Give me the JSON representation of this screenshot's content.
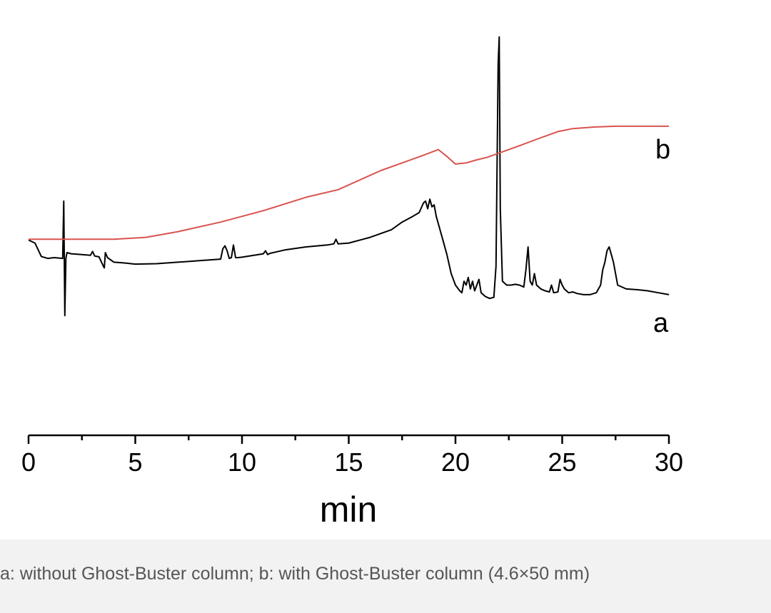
{
  "chart_data": {
    "type": "line",
    "title": "",
    "xlabel": "min",
    "ylabel": "",
    "xlim": [
      0,
      30
    ],
    "ylim": [
      0,
      1
    ],
    "x_ticks": [
      0,
      5,
      10,
      15,
      20,
      25,
      30
    ],
    "x_tick_labels": [
      "0",
      "5",
      "10",
      "15",
      "20",
      "25",
      "30"
    ],
    "grid": false,
    "legend": "inline labels at right end of each trace",
    "series": [
      {
        "name": "a",
        "color": "#000000",
        "x": [
          0,
          0.3,
          0.6,
          0.9,
          1.2,
          1.6,
          1.65,
          1.7,
          1.75,
          1.8,
          2.0,
          2.5,
          2.9,
          3.0,
          3.1,
          3.3,
          3.5,
          3.55,
          3.6,
          3.7,
          4.0,
          4.5,
          5.0,
          6.0,
          7.0,
          8.0,
          9.0,
          9.1,
          9.2,
          9.3,
          9.4,
          9.5,
          9.6,
          9.7,
          9.8,
          10.0,
          11.0,
          11.1,
          11.2,
          11.3,
          12.0,
          13.0,
          14.0,
          14.3,
          14.4,
          14.5,
          15.0,
          16.0,
          17.0,
          17.5,
          18.0,
          18.3,
          18.5,
          18.6,
          18.7,
          18.8,
          18.9,
          19.0,
          19.1,
          19.2,
          19.4,
          19.6,
          19.8,
          20.0,
          20.2,
          20.3,
          20.4,
          20.5,
          20.6,
          20.7,
          20.8,
          20.9,
          21.0,
          21.1,
          21.2,
          21.4,
          21.6,
          21.8,
          21.9,
          22.0,
          22.05,
          22.1,
          22.2,
          22.4,
          22.6,
          22.8,
          23.0,
          23.2,
          23.3,
          23.4,
          23.5,
          23.6,
          23.7,
          23.8,
          24.0,
          24.2,
          24.4,
          24.5,
          24.6,
          24.8,
          24.9,
          25.0,
          25.1,
          25.3,
          25.5,
          25.7,
          26.0,
          26.3,
          26.6,
          26.8,
          26.9,
          27.0,
          27.1,
          27.2,
          27.3,
          27.4,
          27.6,
          28.0,
          28.5,
          29.0,
          29.5,
          30.0
        ],
        "y": [
          0.418,
          0.41,
          0.375,
          0.37,
          0.372,
          0.37,
          0.52,
          0.22,
          0.37,
          0.385,
          0.382,
          0.38,
          0.378,
          0.388,
          0.376,
          0.374,
          0.35,
          0.345,
          0.385,
          0.372,
          0.36,
          0.358,
          0.355,
          0.356,
          0.36,
          0.364,
          0.368,
          0.395,
          0.403,
          0.39,
          0.37,
          0.372,
          0.405,
          0.372,
          0.372,
          0.373,
          0.382,
          0.39,
          0.38,
          0.383,
          0.392,
          0.4,
          0.405,
          0.408,
          0.42,
          0.408,
          0.41,
          0.425,
          0.445,
          0.465,
          0.48,
          0.49,
          0.515,
          0.52,
          0.5,
          0.525,
          0.505,
          0.51,
          0.48,
          0.46,
          0.42,
          0.38,
          0.33,
          0.3,
          0.285,
          0.28,
          0.31,
          0.3,
          0.32,
          0.29,
          0.31,
          0.285,
          0.3,
          0.315,
          0.28,
          0.27,
          0.265,
          0.268,
          0.35,
          0.88,
          0.95,
          0.5,
          0.31,
          0.3,
          0.3,
          0.302,
          0.3,
          0.295,
          0.34,
          0.4,
          0.31,
          0.3,
          0.33,
          0.3,
          0.29,
          0.285,
          0.282,
          0.3,
          0.28,
          0.282,
          0.315,
          0.3,
          0.29,
          0.28,
          0.282,
          0.278,
          0.275,
          0.275,
          0.28,
          0.3,
          0.34,
          0.36,
          0.39,
          0.4,
          0.38,
          0.36,
          0.3,
          0.29,
          0.288,
          0.285,
          0.28,
          0.275
        ]
      },
      {
        "name": "b",
        "color": "#d9534f",
        "x": [
          0,
          2,
          4,
          5.5,
          7,
          9,
          11,
          13,
          14.5,
          15.5,
          16.5,
          17.5,
          18.5,
          19.2,
          19.6,
          20.0,
          20.5,
          21.0,
          21.5,
          22.0,
          23,
          24,
          24.8,
          25.5,
          26.5,
          27.5,
          28.5,
          30.0
        ],
        "y": [
          0.42,
          0.42,
          0.42,
          0.425,
          0.44,
          0.465,
          0.495,
          0.53,
          0.55,
          0.575,
          0.6,
          0.62,
          0.64,
          0.655,
          0.637,
          0.617,
          0.62,
          0.628,
          0.635,
          0.645,
          0.665,
          0.686,
          0.702,
          0.71,
          0.714,
          0.716,
          0.716,
          0.716
        ]
      }
    ],
    "series_labels": [
      "a",
      "b"
    ],
    "xlabel_display": "min"
  },
  "caption": "a: without Ghost-Buster column; b: with Ghost-Buster column (4.6×50 mm)"
}
